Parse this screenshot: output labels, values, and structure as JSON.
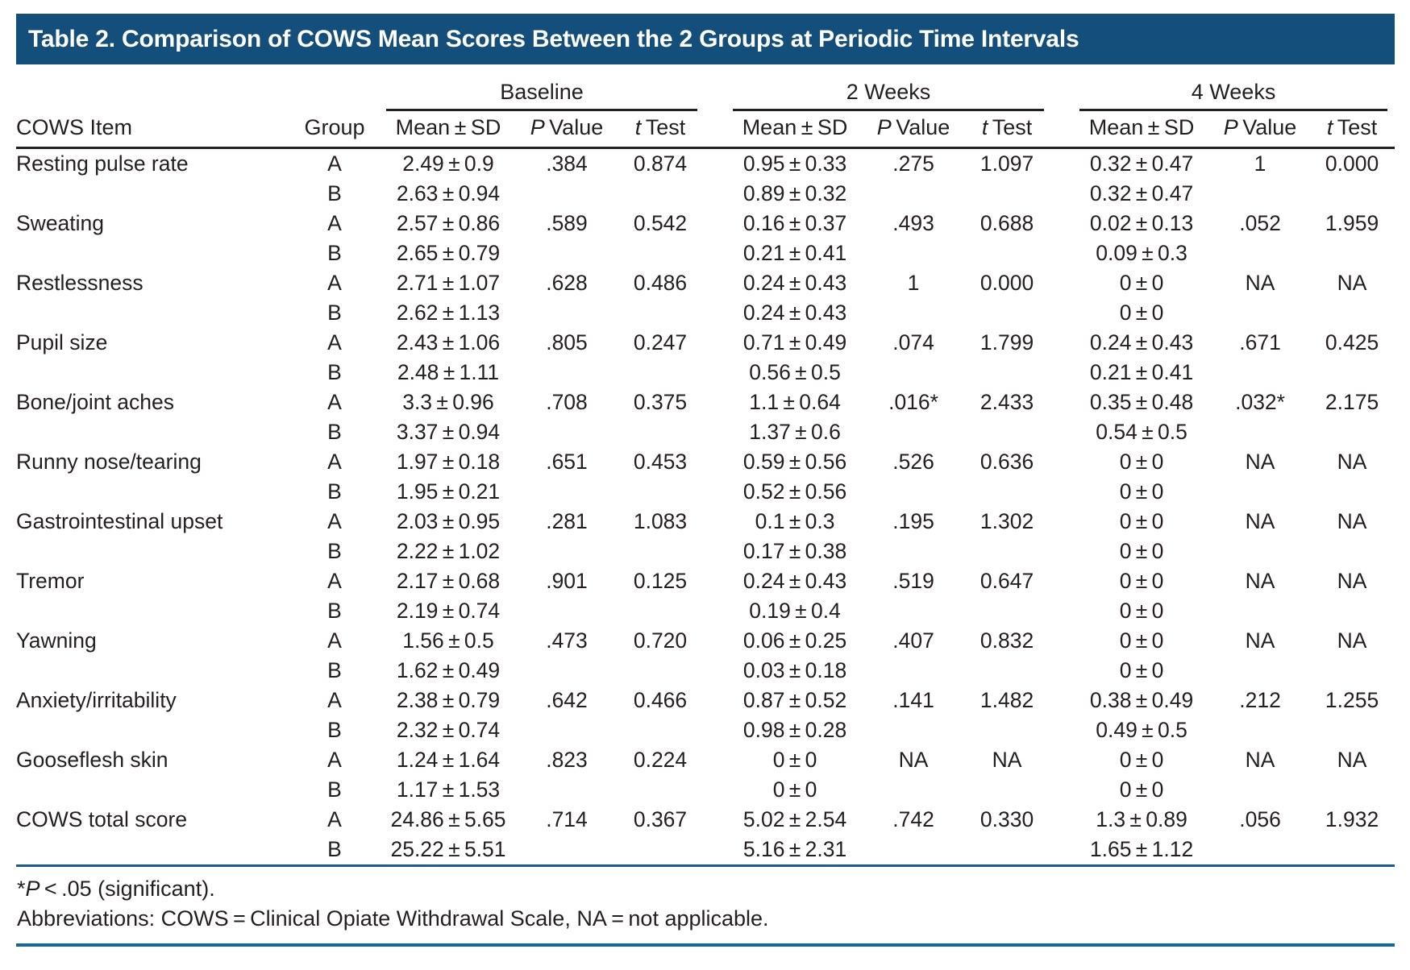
{
  "title_bar": {
    "title": "Table 2. Comparison of COWS Mean Scores Between the 2 Groups at Periodic Time Intervals"
  },
  "colors": {
    "title_bar_background": "#144e7a",
    "title_text": "#ffffff",
    "body_text": "#231f20",
    "black_rule": "#231f20",
    "footnote_top_rule": "#1d5b8c",
    "bottom_rule": "#15689e"
  },
  "table": {
    "item_header": "COWS Item",
    "group_header": "Group",
    "spanners": [
      "Baseline",
      "2 Weeks",
      "4 Weeks"
    ],
    "sub_headers": {
      "mean_sd": "Mean ± SD",
      "p_italic": "P",
      "p_rest": " Value",
      "t_italic": "t",
      "t_rest": " Test"
    },
    "rows": [
      {
        "item": "Resting pulse rate",
        "group": "A",
        "values": [
          "2.49 ± 0.9",
          ".384",
          "0.874",
          "0.95 ± 0.33",
          ".275",
          "1.097",
          "0.32 ± 0.47",
          "1",
          "0.000"
        ]
      },
      {
        "item": "",
        "group": "B",
        "values": [
          "2.63 ± 0.94",
          "",
          "",
          "0.89 ± 0.32",
          "",
          "",
          "0.32 ± 0.47",
          "",
          ""
        ]
      },
      {
        "item": "Sweating",
        "group": "A",
        "values": [
          "2.57 ± 0.86",
          ".589",
          "0.542",
          "0.16 ± 0.37",
          ".493",
          "0.688",
          "0.02 ± 0.13",
          ".052",
          "1.959"
        ]
      },
      {
        "item": "",
        "group": "B",
        "values": [
          "2.65 ± 0.79",
          "",
          "",
          "0.21 ± 0.41",
          "",
          "",
          "0.09 ± 0.3",
          "",
          ""
        ]
      },
      {
        "item": "Restlessness",
        "group": "A",
        "values": [
          "2.71 ± 1.07",
          ".628",
          "0.486",
          "0.24 ± 0.43",
          "1",
          "0.000",
          "0 ± 0",
          "NA",
          "NA"
        ]
      },
      {
        "item": "",
        "group": "B",
        "values": [
          "2.62 ± 1.13",
          "",
          "",
          "0.24 ± 0.43",
          "",
          "",
          "0 ± 0",
          "",
          ""
        ]
      },
      {
        "item": "Pupil size",
        "group": "A",
        "values": [
          "2.43 ± 1.06",
          ".805",
          "0.247",
          "0.71 ± 0.49",
          ".074",
          "1.799",
          "0.24 ± 0.43",
          ".671",
          "0.425"
        ]
      },
      {
        "item": "",
        "group": "B",
        "values": [
          "2.48 ± 1.11",
          "",
          "",
          "0.56 ± 0.5",
          "",
          "",
          "0.21 ± 0.41",
          "",
          ""
        ]
      },
      {
        "item": "Bone/joint aches",
        "group": "A",
        "values": [
          "3.3 ± 0.96",
          ".708",
          "0.375",
          "1.1 ± 0.64",
          ".016*",
          "2.433",
          "0.35 ± 0.48",
          ".032*",
          "2.175"
        ]
      },
      {
        "item": "",
        "group": "B",
        "values": [
          "3.37 ± 0.94",
          "",
          "",
          "1.37 ± 0.6",
          "",
          "",
          "0.54 ± 0.5",
          "",
          ""
        ]
      },
      {
        "item": "Runny nose/tearing",
        "group": "A",
        "values": [
          "1.97 ± 0.18",
          ".651",
          "0.453",
          "0.59 ± 0.56",
          ".526",
          "0.636",
          "0 ± 0",
          "NA",
          "NA"
        ]
      },
      {
        "item": "",
        "group": "B",
        "values": [
          "1.95 ± 0.21",
          "",
          "",
          "0.52 ± 0.56",
          "",
          "",
          "0 ± 0",
          "",
          ""
        ]
      },
      {
        "item": "Gastrointestinal upset",
        "group": "A",
        "values": [
          "2.03 ± 0.95",
          ".281",
          "1.083",
          "0.1 ± 0.3",
          ".195",
          "1.302",
          "0 ± 0",
          "NA",
          "NA"
        ]
      },
      {
        "item": "",
        "group": "B",
        "values": [
          "2.22 ± 1.02",
          "",
          "",
          "0.17 ± 0.38",
          "",
          "",
          "0 ± 0",
          "",
          ""
        ]
      },
      {
        "item": "Tremor",
        "group": "A",
        "values": [
          "2.17 ± 0.68",
          ".901",
          "0.125",
          "0.24 ± 0.43",
          ".519",
          "0.647",
          "0 ± 0",
          "NA",
          "NA"
        ]
      },
      {
        "item": "",
        "group": "B",
        "values": [
          "2.19 ± 0.74",
          "",
          "",
          "0.19 ± 0.4",
          "",
          "",
          "0 ± 0",
          "",
          ""
        ]
      },
      {
        "item": "Yawning",
        "group": "A",
        "values": [
          "1.56 ± 0.5",
          ".473",
          "0.720",
          "0.06 ± 0.25",
          ".407",
          "0.832",
          "0 ± 0",
          "NA",
          "NA"
        ]
      },
      {
        "item": "",
        "group": "B",
        "values": [
          "1.62 ± 0.49",
          "",
          "",
          "0.03 ± 0.18",
          "",
          "",
          "0 ± 0",
          "",
          ""
        ]
      },
      {
        "item": "Anxiety/irritability",
        "group": "A",
        "values": [
          "2.38 ± 0.79",
          ".642",
          "0.466",
          "0.87 ± 0.52",
          ".141",
          "1.482",
          "0.38 ± 0.49",
          ".212",
          "1.255"
        ]
      },
      {
        "item": "",
        "group": "B",
        "values": [
          "2.32 ± 0.74",
          "",
          "",
          "0.98 ± 0.28",
          "",
          "",
          "0.49 ± 0.5",
          "",
          ""
        ]
      },
      {
        "item": "Gooseflesh skin",
        "group": "A",
        "values": [
          "1.24 ± 1.64",
          ".823",
          "0.224",
          "0 ± 0",
          "NA",
          "NA",
          "0 ± 0",
          "NA",
          "NA"
        ]
      },
      {
        "item": "",
        "group": "B",
        "values": [
          "1.17 ± 1.53",
          "",
          "",
          "0 ± 0",
          "",
          "",
          "0 ± 0",
          "",
          ""
        ]
      },
      {
        "item": "COWS total score",
        "group": "A",
        "values": [
          "24.86 ± 5.65",
          ".714",
          "0.367",
          "5.02 ± 2.54",
          ".742",
          "0.330",
          "1.3 ± 0.89",
          ".056",
          "1.932"
        ]
      },
      {
        "item": "",
        "group": "B",
        "values": [
          "25.22 ± 5.51",
          "",
          "",
          "5.16 ± 2.31",
          "",
          "",
          "1.65 ± 1.12",
          "",
          ""
        ]
      }
    ]
  },
  "footnotes": {
    "significance": {
      "star": "*",
      "p_italic": "P",
      "rest": " < .05 (significant)."
    },
    "abbreviations": "Abbreviations: COWS = Clinical Opiate Withdrawal Scale, NA = not applicable."
  }
}
